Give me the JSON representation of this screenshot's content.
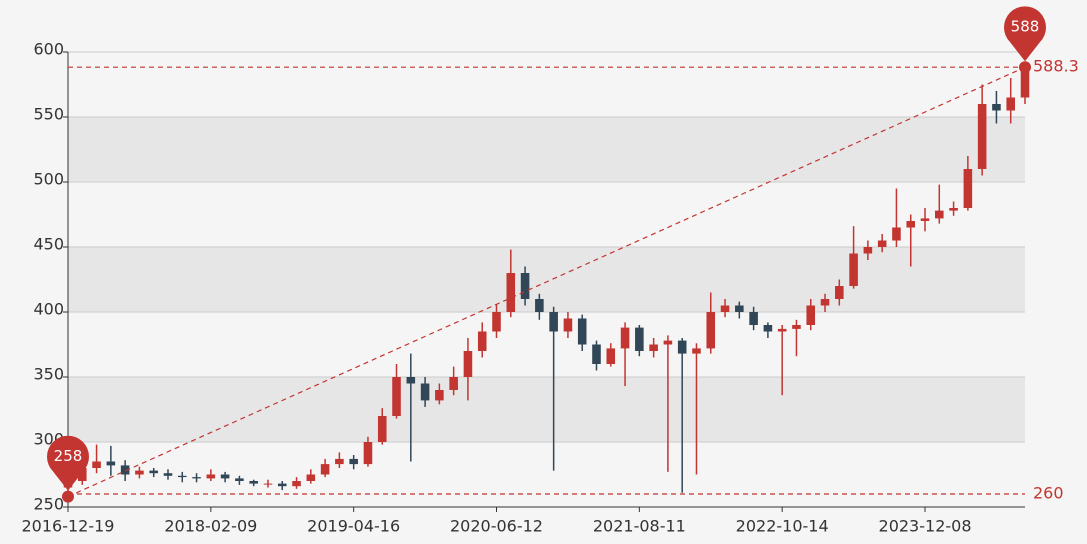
{
  "chart_data": {
    "type": "candlestick",
    "categories": [
      "2016-12-19",
      null,
      null,
      null,
      null,
      null,
      null,
      null,
      null,
      null,
      "2018-02-09",
      null,
      null,
      null,
      null,
      null,
      null,
      null,
      null,
      null,
      "2019-04-16",
      null,
      null,
      null,
      null,
      null,
      null,
      null,
      null,
      null,
      "2020-06-12",
      null,
      null,
      null,
      null,
      null,
      null,
      null,
      null,
      null,
      "2021-08-11",
      null,
      null,
      null,
      null,
      null,
      null,
      null,
      null,
      null,
      "2022-10-14",
      null,
      null,
      null,
      null,
      null,
      null,
      null,
      null,
      null,
      "2023-12-08",
      null,
      null,
      null,
      null,
      null,
      null,
      null
    ],
    "open": [
      265,
      270,
      280,
      285,
      282,
      275,
      278,
      276,
      274,
      273,
      272,
      275,
      272,
      270,
      268,
      268,
      266,
      270,
      275,
      283,
      287,
      283,
      300,
      320,
      350,
      345,
      332,
      340,
      350,
      370,
      385,
      400,
      430,
      410,
      400,
      385,
      395,
      375,
      360,
      372,
      388,
      370,
      375,
      378,
      368,
      372,
      400,
      405,
      400,
      390,
      385,
      387,
      390,
      405,
      410,
      420,
      445,
      450,
      455,
      465,
      470,
      472,
      478,
      480,
      510,
      560,
      555,
      565
    ],
    "close": [
      270,
      280,
      285,
      282,
      275,
      278,
      276,
      274,
      273,
      272,
      275,
      272,
      270,
      268,
      268,
      266,
      270,
      275,
      283,
      287,
      283,
      300,
      320,
      350,
      345,
      332,
      340,
      350,
      370,
      385,
      400,
      430,
      410,
      400,
      385,
      395,
      375,
      360,
      372,
      388,
      370,
      375,
      378,
      368,
      372,
      400,
      405,
      400,
      390,
      385,
      387,
      390,
      405,
      410,
      420,
      445,
      450,
      455,
      465,
      470,
      472,
      478,
      480,
      510,
      560,
      555,
      565,
      585
    ],
    "low": [
      258,
      267,
      276,
      274,
      270,
      272,
      273,
      271,
      269,
      269,
      270,
      269,
      267,
      266,
      265,
      263,
      264,
      268,
      273,
      280,
      279,
      281,
      298,
      318,
      285,
      327,
      329,
      336,
      332,
      365,
      380,
      396,
      405,
      394,
      278,
      380,
      370,
      355,
      358,
      343,
      366,
      365,
      277,
      261,
      275,
      368,
      396,
      395,
      386,
      380,
      336,
      366,
      386,
      400,
      405,
      418,
      440,
      446,
      450,
      435,
      462,
      468,
      474,
      478,
      505,
      545,
      545,
      560
    ],
    "high": [
      275,
      284,
      298,
      297,
      286,
      281,
      280,
      279,
      277,
      276,
      279,
      277,
      274,
      271,
      271,
      270,
      273,
      279,
      287,
      292,
      290,
      304,
      326,
      360,
      368,
      350,
      345,
      358,
      380,
      392,
      406,
      448,
      435,
      414,
      404,
      400,
      398,
      378,
      376,
      392,
      390,
      380,
      382,
      380,
      376,
      415,
      410,
      408,
      404,
      392,
      390,
      394,
      410,
      414,
      425,
      466,
      455,
      460,
      495,
      475,
      480,
      498,
      485,
      520,
      575,
      570,
      580,
      588.3
    ],
    "up_color": "#c23531",
    "down_color": "#314656",
    "ylim": [
      250,
      600
    ],
    "yticks": [
      250,
      300,
      350,
      400,
      450,
      500,
      550,
      600
    ],
    "band_colors": [
      "#f5f5f5",
      "#e6e6e6"
    ],
    "mark_points": [
      {
        "label": "258",
        "value": 258
      },
      {
        "label": "588",
        "value": 588.3
      }
    ],
    "mark_lines": [
      588.3,
      260
    ],
    "mark_color": "#c23531"
  }
}
